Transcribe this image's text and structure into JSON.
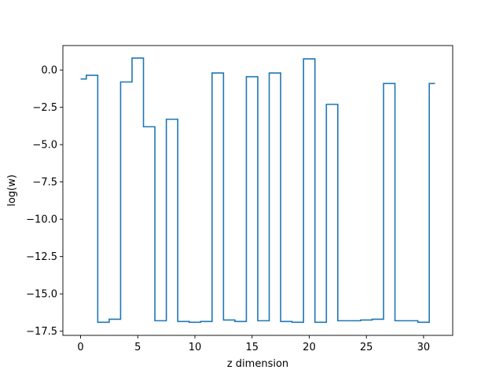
{
  "chart_data": {
    "type": "line",
    "drawstyle": "steps-mid",
    "title": "",
    "xlabel": "z dimension",
    "ylabel": "log(w)",
    "x": [
      0,
      1,
      2,
      3,
      4,
      5,
      6,
      7,
      8,
      9,
      10,
      11,
      12,
      13,
      14,
      15,
      16,
      17,
      18,
      19,
      20,
      21,
      22,
      23,
      24,
      25,
      26,
      27,
      28,
      29,
      30,
      31
    ],
    "y": [
      -0.6,
      -0.35,
      -16.9,
      -16.7,
      -0.8,
      0.8,
      -3.8,
      -16.8,
      -3.3,
      -16.85,
      -16.9,
      -16.85,
      -0.2,
      -16.75,
      -16.85,
      -0.45,
      -16.8,
      -0.2,
      -16.85,
      -16.9,
      0.75,
      -16.9,
      -2.3,
      -16.8,
      -16.8,
      -16.75,
      -16.7,
      -0.9,
      -16.8,
      -16.8,
      -16.9,
      -0.9
    ],
    "xlim": [
      -1.55,
      32.55
    ],
    "ylim": [
      -17.78,
      1.64
    ],
    "xticks": [
      0,
      5,
      10,
      15,
      20,
      25,
      30
    ],
    "xtick_labels": [
      "0",
      "5",
      "10",
      "15",
      "20",
      "25",
      "30"
    ],
    "yticks": [
      0,
      -2.5,
      -5,
      -7.5,
      -10,
      -12.5,
      -15,
      -17.5
    ],
    "ytick_labels": [
      "0.0",
      "−2.5",
      "−5.0",
      "−7.5",
      "−10.0",
      "−12.5",
      "−15.0",
      "−17.5"
    ],
    "grid": false,
    "series_color": "#1f77b4"
  }
}
